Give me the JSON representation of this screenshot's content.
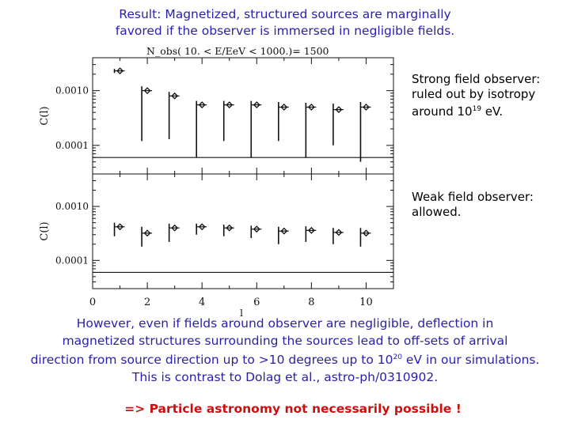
{
  "header": {
    "line1": "Result: Magnetized, structured sources are marginally",
    "line2": "favored if the observer is immersed in negligible fields."
  },
  "notes": {
    "strong_line1": "Strong field observer:",
    "strong_line2": "ruled out by isotropy",
    "strong_line3_pre": "around 10",
    "strong_line3_sup": "19",
    "strong_line3_post": " eV.",
    "weak_line1": "Weak field observer:",
    "weak_line2": "allowed."
  },
  "footer": {
    "line1": "However, even if fields around observer are negligible, deflection in",
    "line2": "magnetized structures surrounding the sources lead to off-sets of arrival",
    "line3_pre": "direction from source direction up to >10 degrees up to 10",
    "line3_sup": "20",
    "line3_post": " eV in our simulations.",
    "line4": "This is contrast to Dolag et al., astro-ph/0310902."
  },
  "conclusion": "=> Particle astronomy not necessarily possible !",
  "colors": {
    "text_blue": "#2a1fa8",
    "text_red": "#cc1010",
    "plot_ink": "#111111"
  },
  "chart_data": [
    {
      "type": "scatter",
      "title": "N_obs( 10. < E/EeV < 1000.)= 1500",
      "ylabel": "C(l)",
      "xlabel": "",
      "y_scale": "log",
      "xlim": [
        0,
        11
      ],
      "ylim": [
        3e-05,
        0.004
      ],
      "x_ticks": [
        0,
        2,
        4,
        6,
        8,
        10
      ],
      "y_ticks": [
        {
          "value": 0.001,
          "label": "0.0010"
        },
        {
          "value": 0.0001,
          "label": "0.0001"
        }
      ],
      "reference_line": 6e-05,
      "points": [
        {
          "x": 1,
          "y": 0.0023,
          "lo": 0.0021,
          "hi": 0.0025
        },
        {
          "x": 2,
          "y": 0.001,
          "lo": 0.00012,
          "hi": 0.0012
        },
        {
          "x": 3,
          "y": 0.0008,
          "lo": 0.00013,
          "hi": 0.00095
        },
        {
          "x": 4,
          "y": 0.00055,
          "lo": 6e-05,
          "hi": 0.00065
        },
        {
          "x": 5,
          "y": 0.00055,
          "lo": 0.00012,
          "hi": 0.00065
        },
        {
          "x": 6,
          "y": 0.00055,
          "lo": 6e-05,
          "hi": 0.00065
        },
        {
          "x": 7,
          "y": 0.0005,
          "lo": 0.00012,
          "hi": 0.00062
        },
        {
          "x": 8,
          "y": 0.0005,
          "lo": 6e-05,
          "hi": 0.0006
        },
        {
          "x": 9,
          "y": 0.00045,
          "lo": 0.0001,
          "hi": 0.00058
        },
        {
          "x": 10,
          "y": 0.0005,
          "lo": 5e-05,
          "hi": 0.00062
        }
      ]
    },
    {
      "type": "scatter",
      "title": "",
      "ylabel": "C(l)",
      "xlabel": "l",
      "y_scale": "log",
      "xlim": [
        0,
        11
      ],
      "ylim": [
        3e-05,
        0.004
      ],
      "x_ticks": [
        0,
        2,
        4,
        6,
        8,
        10
      ],
      "y_ticks": [
        {
          "value": 0.001,
          "label": "0.0010"
        },
        {
          "value": 0.0001,
          "label": "0.0001"
        }
      ],
      "reference_line": 6e-05,
      "points": [
        {
          "x": 1,
          "y": 0.00042,
          "lo": 0.00028,
          "hi": 0.0005
        },
        {
          "x": 2,
          "y": 0.00032,
          "lo": 0.00018,
          "hi": 0.00042
        },
        {
          "x": 3,
          "y": 0.0004,
          "lo": 0.00022,
          "hi": 0.00048
        },
        {
          "x": 4,
          "y": 0.00042,
          "lo": 0.0003,
          "hi": 0.00048
        },
        {
          "x": 5,
          "y": 0.0004,
          "lo": 0.00028,
          "hi": 0.00046
        },
        {
          "x": 6,
          "y": 0.00038,
          "lo": 0.00026,
          "hi": 0.00044
        },
        {
          "x": 7,
          "y": 0.00035,
          "lo": 0.0002,
          "hi": 0.00042
        },
        {
          "x": 8,
          "y": 0.00036,
          "lo": 0.00022,
          "hi": 0.00043
        },
        {
          "x": 9,
          "y": 0.00033,
          "lo": 0.0002,
          "hi": 0.0004
        },
        {
          "x": 10,
          "y": 0.00032,
          "lo": 0.00018,
          "hi": 0.0004
        }
      ]
    }
  ]
}
